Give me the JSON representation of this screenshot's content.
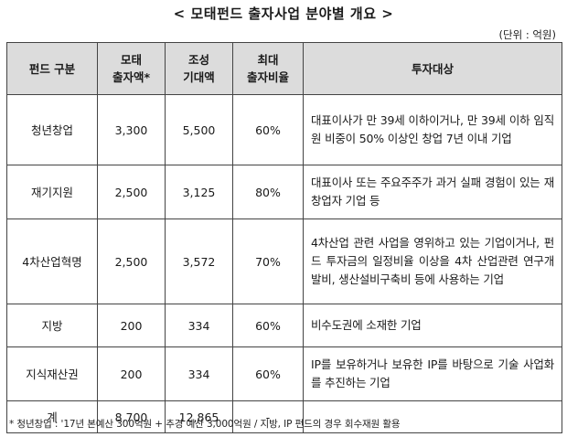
{
  "title": "< 모태펀드 출자사업 분야별 개요 >",
  "unit": "(단위 : 억원)",
  "headers": [
    "펀드 구분",
    "모태\n출자액*",
    "조성\n기대액",
    "최대\n출자비율",
    "투자대상"
  ],
  "rows": [
    {
      "fund": "청년창업",
      "mother": "3,300",
      "expected": "5,500",
      "ratio": "60%",
      "target": "대표이사가 만 39세 이하이거나, 만 39세 이하 임직원 비중이 50% 이상인 창업 7년 이내 기업"
    },
    {
      "fund": "재기지원",
      "mother": "2,500",
      "expected": "3,125",
      "ratio": "80%",
      "target": "대표이사 또는 주요주주가 과거 실패 경험이 있는 재창업자 기업 등"
    },
    {
      "fund": "4차산업혁명",
      "mother": "2,500",
      "expected": "3,572",
      "ratio": "70%",
      "target": "4차산업 관련 사업을 영위하고 있는 기업이거나, 펀드 투자금의 일정비율 이상을 4차 산업관련 연구개발비, 생산설비구축비 등에 사용하는 기업"
    },
    {
      "fund": "지방",
      "mother": "200",
      "expected": "334",
      "ratio": "60%",
      "target": "비수도권에 소재한 기업"
    },
    {
      "fund": "지식재산권",
      "mother": "200",
      "expected": "334",
      "ratio": "60%",
      "target": "IP를 보유하거나 보유한 IP를 바탕으로 기술 사업화를 추진하는 기업"
    },
    {
      "fund": "계",
      "mother": "8,700",
      "expected": "12,865",
      "ratio": "-",
      "target": ""
    }
  ],
  "footnote": "* 청년창업 : '17년 본예산 300억원 + 추경 예산 3,000억원 / 지방, IP 펀드의 경우 회수재원 활용"
}
